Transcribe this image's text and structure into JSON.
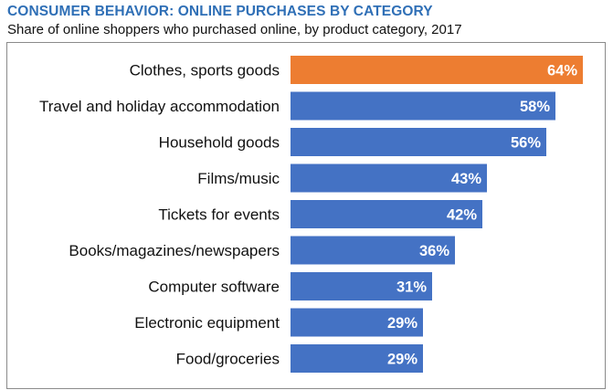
{
  "chart_data": {
    "type": "bar",
    "orientation": "horizontal",
    "title": "CONSUMER BEHAVIOR: ONLINE PURCHASES BY CATEGORY",
    "subtitle": "Share of online shoppers who purchased online, by product category, 2017",
    "categories": [
      "Clothes, sports goods",
      "Travel and holiday accommodation",
      "Household goods",
      "Films/music",
      "Tickets for events",
      "Books/magazines/newspapers",
      "Computer software",
      "Electronic equipment",
      "Food/groceries"
    ],
    "values": [
      64,
      58,
      56,
      43,
      42,
      36,
      31,
      29,
      29
    ],
    "value_labels": [
      "64%",
      "58%",
      "56%",
      "43%",
      "42%",
      "36%",
      "31%",
      "29%",
      "29%"
    ],
    "unit": "%",
    "xlim": [
      0,
      64
    ],
    "highlight_index": 0,
    "colors": {
      "bar": "#4472c4",
      "highlight": "#ed7d31",
      "title": "#2f6fb6"
    }
  }
}
